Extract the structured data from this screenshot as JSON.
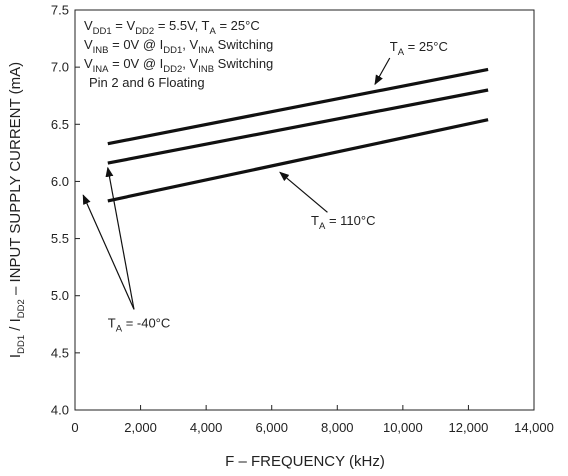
{
  "chart_data": {
    "type": "line",
    "xlabel": "F – FREQUENCY (kHz)",
    "ylabel": {
      "parts": [
        {
          "t": "I",
          "sub": false
        },
        {
          "t": "DD1",
          "sub": true
        },
        {
          "t": " / I",
          "sub": false
        },
        {
          "t": "DD2",
          "sub": true
        },
        {
          "t": " – INPUT SUPPLY CURRENT (mA)",
          "sub": false
        }
      ]
    },
    "xlim": [
      0,
      14000
    ],
    "ylim": [
      4.0,
      7.5
    ],
    "x_ticks": [
      0,
      2000,
      4000,
      6000,
      8000,
      10000,
      12000,
      14000
    ],
    "x_tick_labels": [
      "0",
      "2,000",
      "4,000",
      "6,000",
      "8,000",
      "10,000",
      "12,000",
      "14,000"
    ],
    "y_ticks": [
      4.0,
      4.5,
      5.0,
      5.5,
      6.0,
      6.5,
      7.0,
      7.5
    ],
    "y_tick_labels": [
      "4.0",
      "4.5",
      "5.0",
      "5.5",
      "6.0",
      "6.5",
      "7.0",
      "7.5"
    ],
    "grid": false,
    "series": [
      {
        "name": "T_A = 25°C",
        "x": [
          1000,
          12600
        ],
        "y": [
          6.33,
          6.98
        ]
      },
      {
        "name": "T_A = -40°C",
        "x": [
          1000,
          12600
        ],
        "y": [
          6.16,
          6.8
        ]
      },
      {
        "name": "T_A = 110°C",
        "x": [
          1000,
          12600
        ],
        "y": [
          5.83,
          6.54
        ]
      }
    ],
    "conditions": [
      {
        "parts": [
          {
            "t": "V",
            "sub": false
          },
          {
            "t": "DD1",
            "sub": true
          },
          {
            "t": " = V",
            "sub": false
          },
          {
            "t": "DD2",
            "sub": true
          },
          {
            "t": " = 5.5V, T",
            "sub": false
          },
          {
            "t": "A",
            "sub": true
          },
          {
            "t": " = 25°C",
            "sub": false
          }
        ]
      },
      {
        "parts": [
          {
            "t": "V",
            "sub": false
          },
          {
            "t": "INB",
            "sub": true
          },
          {
            "t": " = 0V @ I",
            "sub": false
          },
          {
            "t": "DD1",
            "sub": true
          },
          {
            "t": ", V",
            "sub": false
          },
          {
            "t": "INA",
            "sub": true
          },
          {
            "t": " Switching",
            "sub": false
          }
        ]
      },
      {
        "parts": [
          {
            "t": "V",
            "sub": false
          },
          {
            "t": "INA",
            "sub": true
          },
          {
            "t": " = 0V @ I",
            "sub": false
          },
          {
            "t": "DD2",
            "sub": true
          },
          {
            "t": ", V",
            "sub": false
          },
          {
            "t": "INB",
            "sub": true
          },
          {
            "t": " Switching",
            "sub": false
          }
        ]
      },
      {
        "parts": [
          {
            "t": "Pin 2 and 6 Floating",
            "sub": false
          }
        ]
      }
    ],
    "annotations": [
      {
        "series": 0,
        "parts": [
          {
            "t": "T",
            "sub": false
          },
          {
            "t": "A",
            "sub": true
          },
          {
            "t": " = 25°C",
            "sub": false
          }
        ],
        "text_at": [
          9600,
          7.14
        ],
        "arrows": [
          {
            "from": [
              9600,
              7.08
            ],
            "to": [
              9150,
              6.85
            ]
          }
        ]
      },
      {
        "series": 1,
        "parts": [
          {
            "t": "T",
            "sub": false
          },
          {
            "t": "A",
            "sub": true
          },
          {
            "t": " = -40°C",
            "sub": false
          }
        ],
        "text_at": [
          1000,
          4.72
        ],
        "arrows": [
          {
            "from": [
              1800,
              4.88
            ],
            "to": [
              250,
              5.88
            ]
          },
          {
            "from": [
              1800,
              4.88
            ],
            "to": [
              1000,
              6.12
            ]
          }
        ]
      },
      {
        "series": 2,
        "parts": [
          {
            "t": "T",
            "sub": false
          },
          {
            "t": "A",
            "sub": true
          },
          {
            "t": " = 110°C",
            "sub": false
          }
        ],
        "text_at": [
          7200,
          5.62
        ],
        "arrows": [
          {
            "from": [
              7700,
              5.73
            ],
            "to": [
              6250,
              6.08
            ]
          }
        ]
      }
    ],
    "colors": {
      "line": "#111111",
      "axis": "#222222",
      "background": "#ffffff"
    }
  }
}
